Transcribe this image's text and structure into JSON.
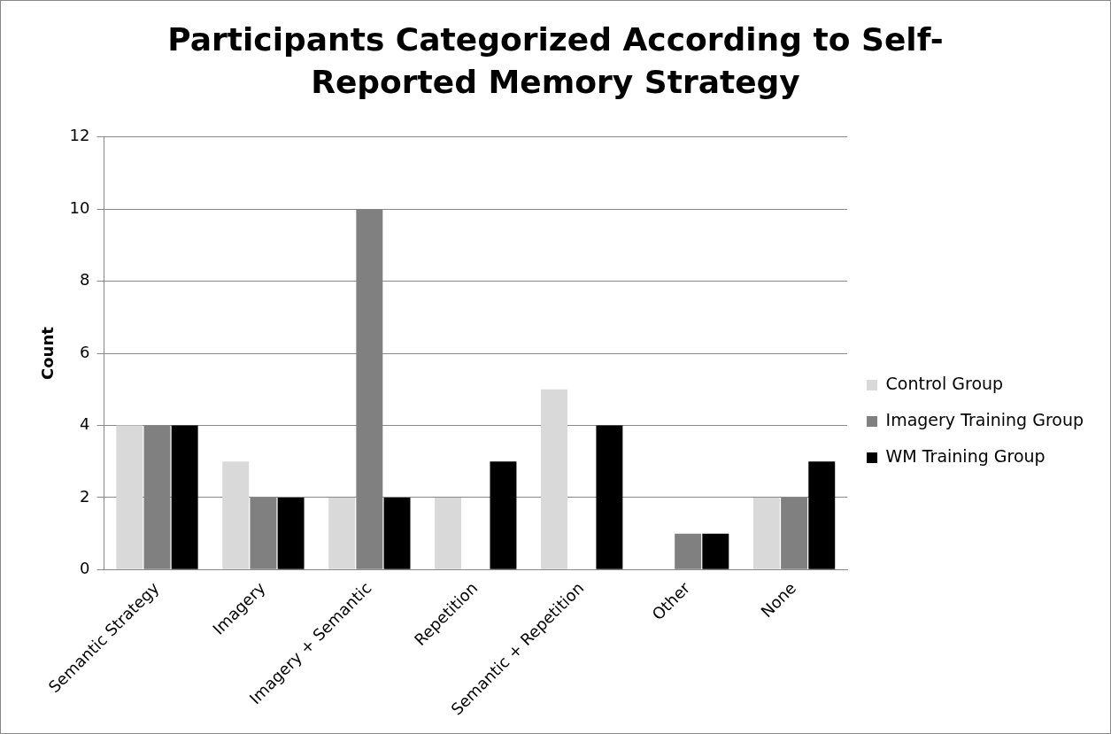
{
  "chart_data": {
    "type": "bar",
    "title": "Participants Categorized According to Self-Reported Memory Strategy",
    "ylabel": "Count",
    "categories": [
      "Semantic Strategy",
      "Imagery",
      "Imagery + Semantic",
      "Repetition",
      "Semantic + Repetition",
      "Other",
      "None"
    ],
    "series": [
      {
        "name": "Control Group",
        "color": "#d9d9d9",
        "values": [
          4,
          3,
          2,
          2,
          5,
          0,
          2
        ]
      },
      {
        "name": "Imagery Training Group",
        "color": "#808080",
        "values": [
          4,
          2,
          10,
          0,
          0,
          1,
          2
        ]
      },
      {
        "name": "WM Training Group",
        "color": "#000000",
        "values": [
          4,
          2,
          2,
          3,
          4,
          1,
          3
        ]
      }
    ],
    "ylim": [
      0,
      12
    ],
    "yticks": [
      0,
      2,
      4,
      6,
      8,
      10,
      12
    ],
    "grid": "y",
    "legend": "right"
  }
}
